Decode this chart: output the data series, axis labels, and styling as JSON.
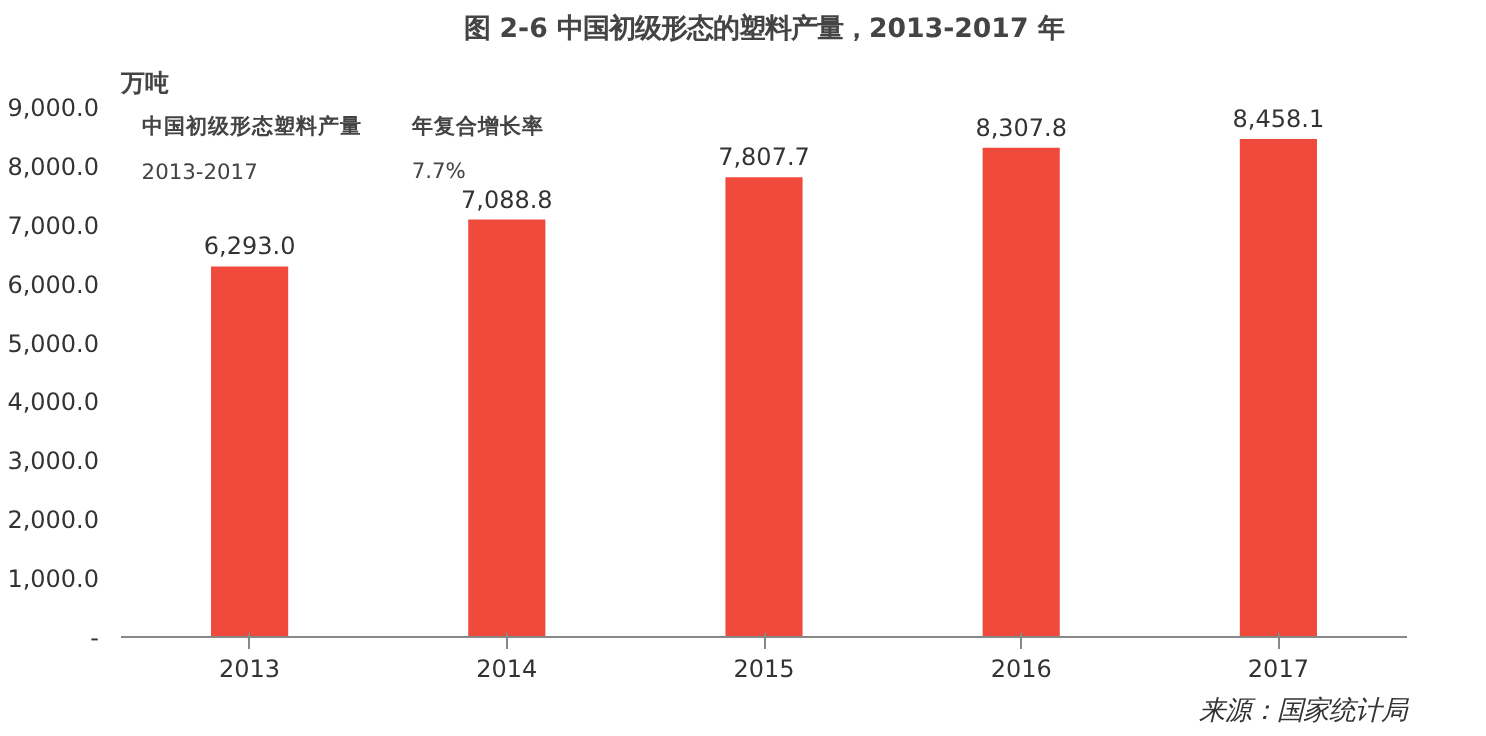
{
  "chart_data": {
    "type": "bar",
    "title": "图 2-6 中国初级形态的塑料产量，2013-2017 年",
    "ylabel": "万吨",
    "categories": [
      "2013",
      "2014",
      "2015",
      "2016",
      "2017"
    ],
    "values": [
      6293.0,
      7088.8,
      7807.7,
      8307.8,
      8458.1
    ],
    "color": "#f04a3c",
    "ylim": [
      0,
      9000
    ],
    "yticks": [
      {
        "value": 0,
        "label": "-"
      },
      {
        "value": 1000,
        "label": "1,000.0"
      },
      {
        "value": 2000,
        "label": "2,000.0"
      },
      {
        "value": 3000,
        "label": "3,000.0"
      },
      {
        "value": 4000,
        "label": "4,000.0"
      },
      {
        "value": 5000,
        "label": "5,000.0"
      },
      {
        "value": 6000,
        "label": "6,000.0"
      },
      {
        "value": 7000,
        "label": "7,000.0"
      },
      {
        "value": 8000,
        "label": "8,000.0"
      },
      {
        "value": 9000,
        "label": "9,000.0"
      }
    ],
    "grid": false,
    "value_labels": [
      "6,293.0",
      "7,088.8",
      "7,807.7",
      "8,307.8",
      "8,458.1"
    ],
    "annotations": [
      "中国初级形态塑料产量",
      "年复合增长率",
      "2013-2017",
      "7.7%",
      "来源：国家统计局"
    ]
  }
}
